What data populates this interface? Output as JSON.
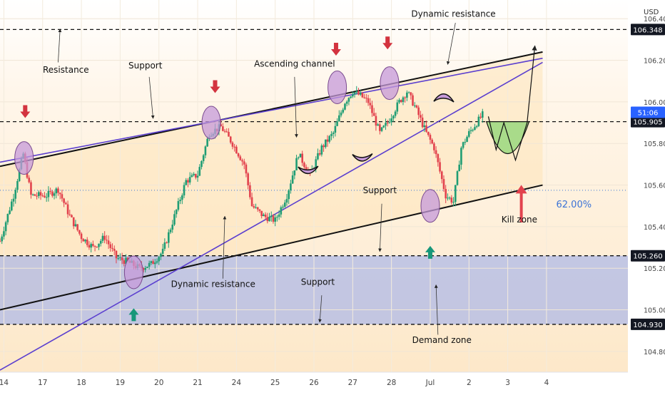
{
  "chart_data": {
    "type": "candlestick",
    "currency": "USD",
    "y_range": [
      104.7,
      106.49
    ],
    "x_range": [
      0,
      16.2
    ],
    "x_ticks": [
      {
        "label": "14",
        "x": 0.1
      },
      {
        "label": "17",
        "x": 1.1
      },
      {
        "label": "18",
        "x": 2.1
      },
      {
        "label": "19",
        "x": 3.1
      },
      {
        "label": "20",
        "x": 4.1
      },
      {
        "label": "21",
        "x": 5.1
      },
      {
        "label": "24",
        "x": 6.1
      },
      {
        "label": "25",
        "x": 7.1
      },
      {
        "label": "26",
        "x": 8.1
      },
      {
        "label": "27",
        "x": 9.1
      },
      {
        "label": "28",
        "x": 10.1
      },
      {
        "label": "Jul",
        "x": 11.1
      },
      {
        "label": "2",
        "x": 12.1
      },
      {
        "label": "3",
        "x": 13.1
      },
      {
        "label": "4",
        "x": 14.1
      }
    ],
    "y_ticks": [
      {
        "label": "106.400",
        "value": 106.4
      },
      {
        "label": "106.200",
        "value": 106.2
      },
      {
        "label": "106.000",
        "value": 106.0
      },
      {
        "label": "105.800",
        "value": 105.8
      },
      {
        "label": "105.600",
        "value": 105.6
      },
      {
        "label": "105.400",
        "value": 105.4
      },
      {
        "label": "105.200",
        "value": 105.2
      },
      {
        "label": "105.000",
        "value": 105.0
      },
      {
        "label": "104.800",
        "value": 104.8
      }
    ],
    "price_badges": [
      {
        "label": "106.348",
        "value": 106.348,
        "style": "dark"
      },
      {
        "label": "105.905",
        "value": 105.905,
        "style": "dark"
      },
      {
        "label": "105.260",
        "value": 105.26,
        "style": "dark"
      },
      {
        "label": "104.930",
        "value": 104.93,
        "style": "dark"
      }
    ],
    "current_price": {
      "label": "51:06",
      "value": 105.95
    },
    "fib_level": {
      "label": "62.00%",
      "value": 105.575
    },
    "horizontal_levels": [
      106.348,
      105.905,
      105.26,
      104.93
    ],
    "demand_zone": [
      104.93,
      105.26
    ],
    "channel": {
      "upper": [
        [
          0,
          105.69
        ],
        [
          14,
          106.24
        ]
      ],
      "lower": [
        [
          0,
          105.0
        ],
        [
          14,
          105.6
        ]
      ]
    },
    "purple_lines": [
      [
        [
          0,
          105.71
        ],
        [
          14,
          106.21
        ]
      ],
      [
        [
          0,
          104.71
        ],
        [
          14,
          106.19
        ]
      ]
    ],
    "candle_path": [
      [
        0,
        105.33
      ],
      [
        0.35,
        105.55
      ],
      [
        0.6,
        105.75
      ],
      [
        0.8,
        105.55
      ],
      [
        1.2,
        105.55
      ],
      [
        1.5,
        105.58
      ],
      [
        1.8,
        105.45
      ],
      [
        2.1,
        105.35
      ],
      [
        2.4,
        105.3
      ],
      [
        2.7,
        105.35
      ],
      [
        3.0,
        105.25
      ],
      [
        3.3,
        105.23
      ],
      [
        3.6,
        105.2
      ],
      [
        3.9,
        105.22
      ],
      [
        4.2,
        105.28
      ],
      [
        4.5,
        105.45
      ],
      [
        4.8,
        105.62
      ],
      [
        5.1,
        105.65
      ],
      [
        5.4,
        105.85
      ],
      [
        5.7,
        105.88
      ],
      [
        6.0,
        105.8
      ],
      [
        6.3,
        105.7
      ],
      [
        6.5,
        105.5
      ],
      [
        6.8,
        105.45
      ],
      [
        7.1,
        105.43
      ],
      [
        7.4,
        105.55
      ],
      [
        7.7,
        105.75
      ],
      [
        8.0,
        105.65
      ],
      [
        8.3,
        105.78
      ],
      [
        8.6,
        105.85
      ],
      [
        8.9,
        106.0
      ],
      [
        9.1,
        106.05
      ],
      [
        9.3,
        106.03
      ],
      [
        9.5,
        106.0
      ],
      [
        9.8,
        105.85
      ],
      [
        10.0,
        105.9
      ],
      [
        10.3,
        106.0
      ],
      [
        10.5,
        106.05
      ],
      [
        10.7,
        105.98
      ],
      [
        11.0,
        105.85
      ],
      [
        11.2,
        105.78
      ],
      [
        11.5,
        105.55
      ],
      [
        11.7,
        105.52
      ],
      [
        11.9,
        105.78
      ],
      [
        12.1,
        105.85
      ],
      [
        12.3,
        105.9
      ],
      [
        12.5,
        105.95
      ]
    ],
    "projection_path": [
      [
        12.6,
        105.93
      ],
      [
        12.8,
        105.77
      ],
      [
        13.0,
        105.9
      ],
      [
        13.3,
        105.72
      ],
      [
        13.6,
        105.9
      ],
      [
        13.8,
        106.27
      ]
    ],
    "annotations": [
      {
        "text": "Dynamic resistance",
        "x": 11.7,
        "value": 106.41
      },
      {
        "text": "Resistance",
        "x": 1.7,
        "value": 106.14
      },
      {
        "text": "Support",
        "x": 3.75,
        "value": 106.16
      },
      {
        "text": "Ascending channel",
        "x": 7.6,
        "value": 106.17
      },
      {
        "text": "Support",
        "x": 9.8,
        "value": 105.56
      },
      {
        "text": "Kill zone",
        "x": 13.4,
        "value": 105.42
      },
      {
        "text": "Dynamic resistance",
        "x": 5.5,
        "value": 105.11
      },
      {
        "text": "Support",
        "x": 8.2,
        "value": 105.12
      },
      {
        "text": "Demand zone",
        "x": 11.4,
        "value": 104.84
      }
    ]
  }
}
